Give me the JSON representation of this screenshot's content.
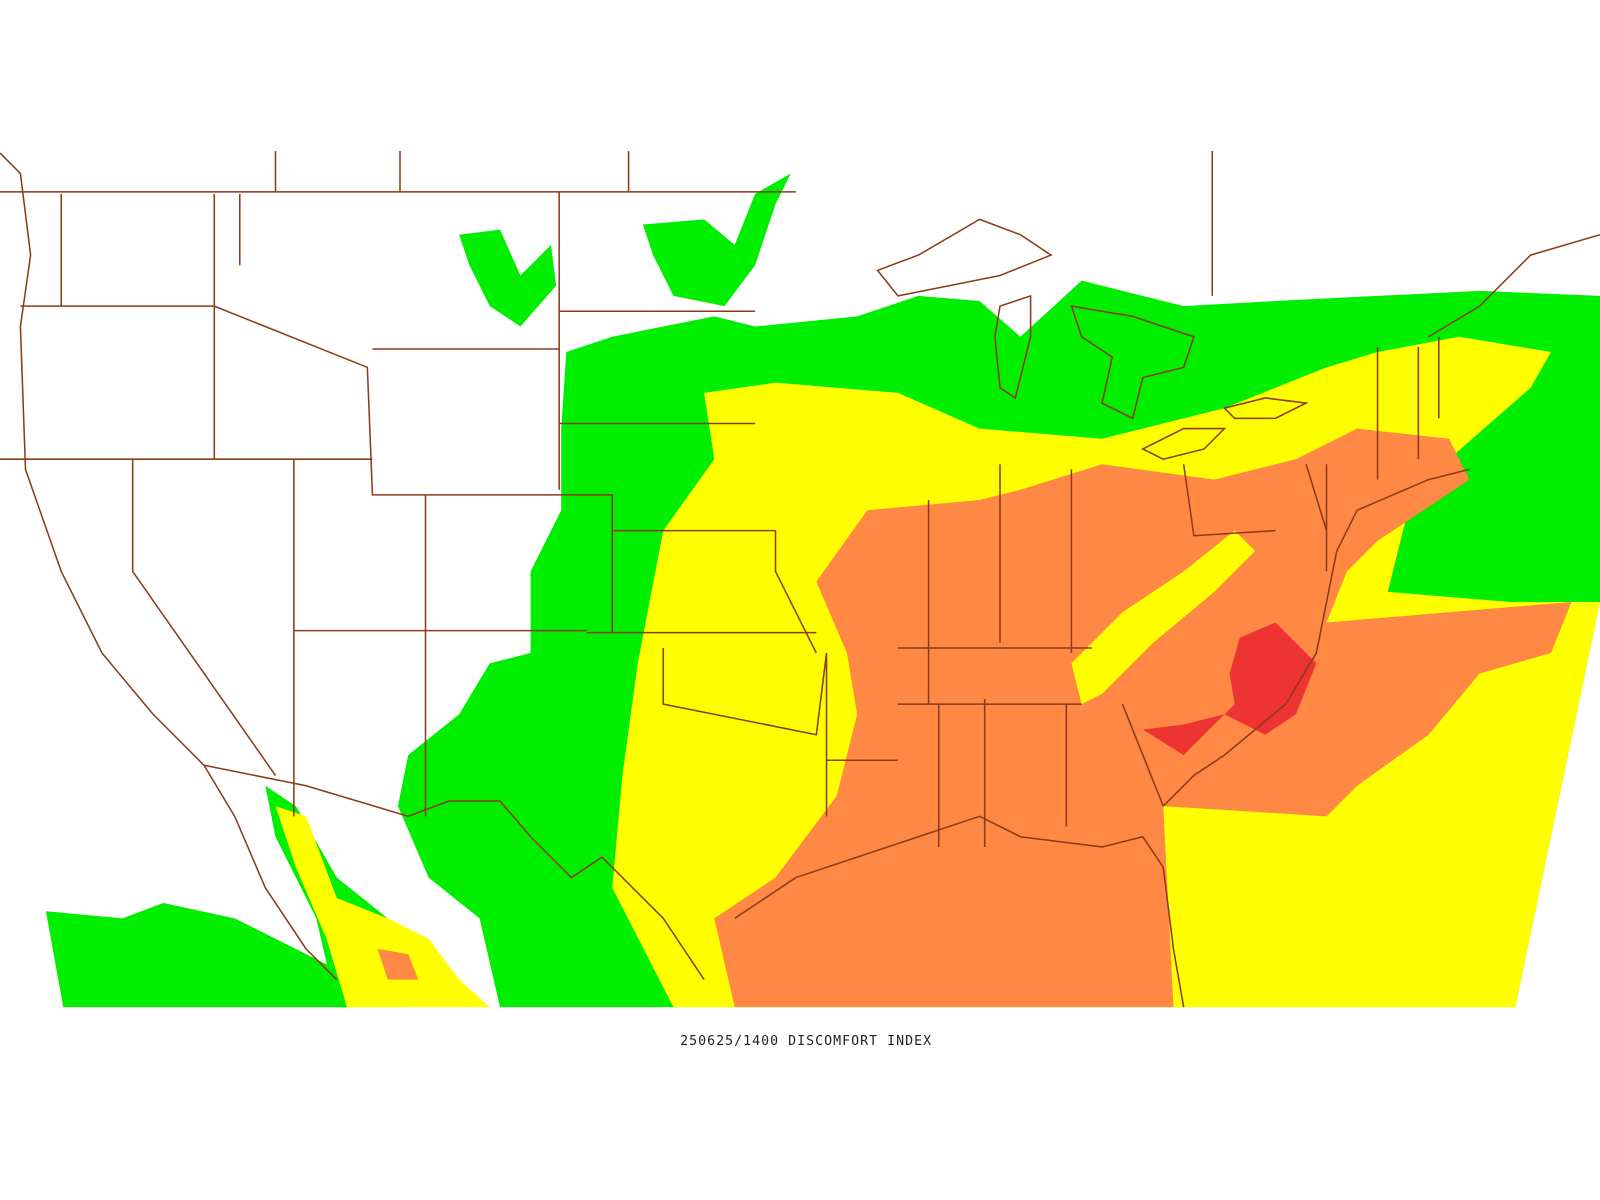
{
  "caption": "250625/1400 DISCOMFORT INDEX"
}
